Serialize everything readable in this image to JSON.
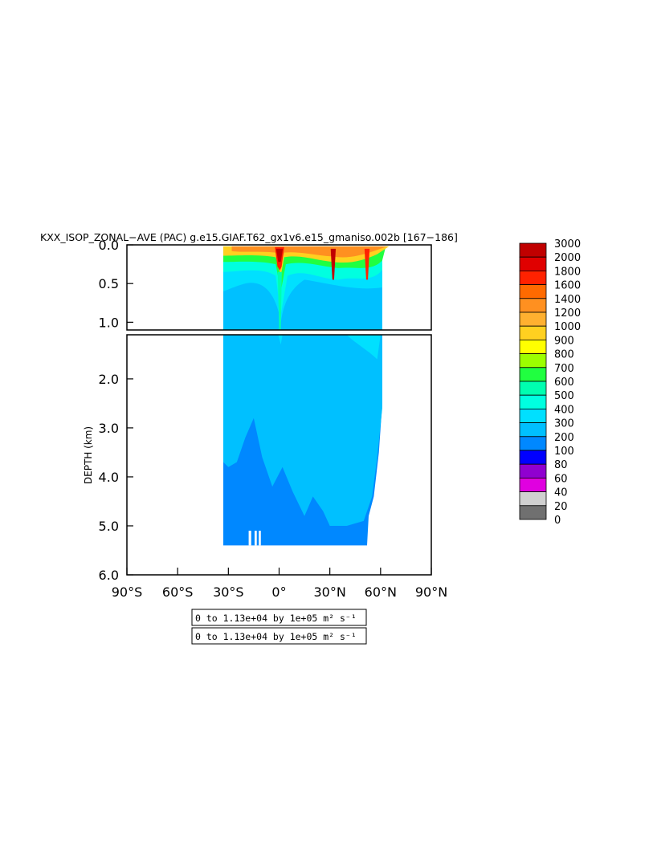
{
  "chart_data": {
    "type": "heatmap",
    "title": "KXX_ISOP_ZONAL−AVE (PAC) g.e15.GIAF.T62_gx1v6.e15_gmaniso.002b  [167−186]",
    "xlabel": "",
    "ylabel": "DEPTH (km)",
    "x_ticks": [
      "90°S",
      "60°S",
      "30°S",
      "0°",
      "30°N",
      "60°N",
      "90°N"
    ],
    "y_ticks_upper": [
      "0.0",
      "0.5",
      "1.0"
    ],
    "y_ticks_lower": [
      "2.0",
      "3.0",
      "4.0",
      "5.0",
      "6.0"
    ],
    "xlim": [
      -90,
      90
    ],
    "ylim_upper": [
      0,
      1.1
    ],
    "ylim_lower": [
      1.1,
      6.0
    ],
    "colorbar": {
      "levels": [
        "3000",
        "2000",
        "1800",
        "1600",
        "1400",
        "1200",
        "1000",
        "900",
        "800",
        "700",
        "600",
        "500",
        "400",
        "300",
        "200",
        "100",
        "80",
        "60",
        "40",
        "20",
        "0"
      ],
      "colors": [
        "#c00000",
        "#e00000",
        "#ff2200",
        "#ff6a00",
        "#ff9020",
        "#ffb030",
        "#ffd020",
        "#ffff00",
        "#9cff00",
        "#20ff40",
        "#00ffb0",
        "#00ffe0",
        "#00e0ff",
        "#00c0ff",
        "#0088ff",
        "#0000ff",
        "#9000d0",
        "#e000e0",
        "#d0d0d0",
        "#707070"
      ]
    },
    "field": {
      "lat_south_edge": -33,
      "lat_north_edge_upper": 61,
      "lat_north_edge_bottom": 52,
      "max_depth": 5.4,
      "equator_peak_lat": 0,
      "secondary_peak_lats": [
        32,
        52
      ]
    },
    "info_boxes": [
      "0 to 1.13e+04 by 1e+05 m² s⁻¹",
      "0 to 1.13e+04 by 1e+05 m² s⁻¹"
    ]
  }
}
